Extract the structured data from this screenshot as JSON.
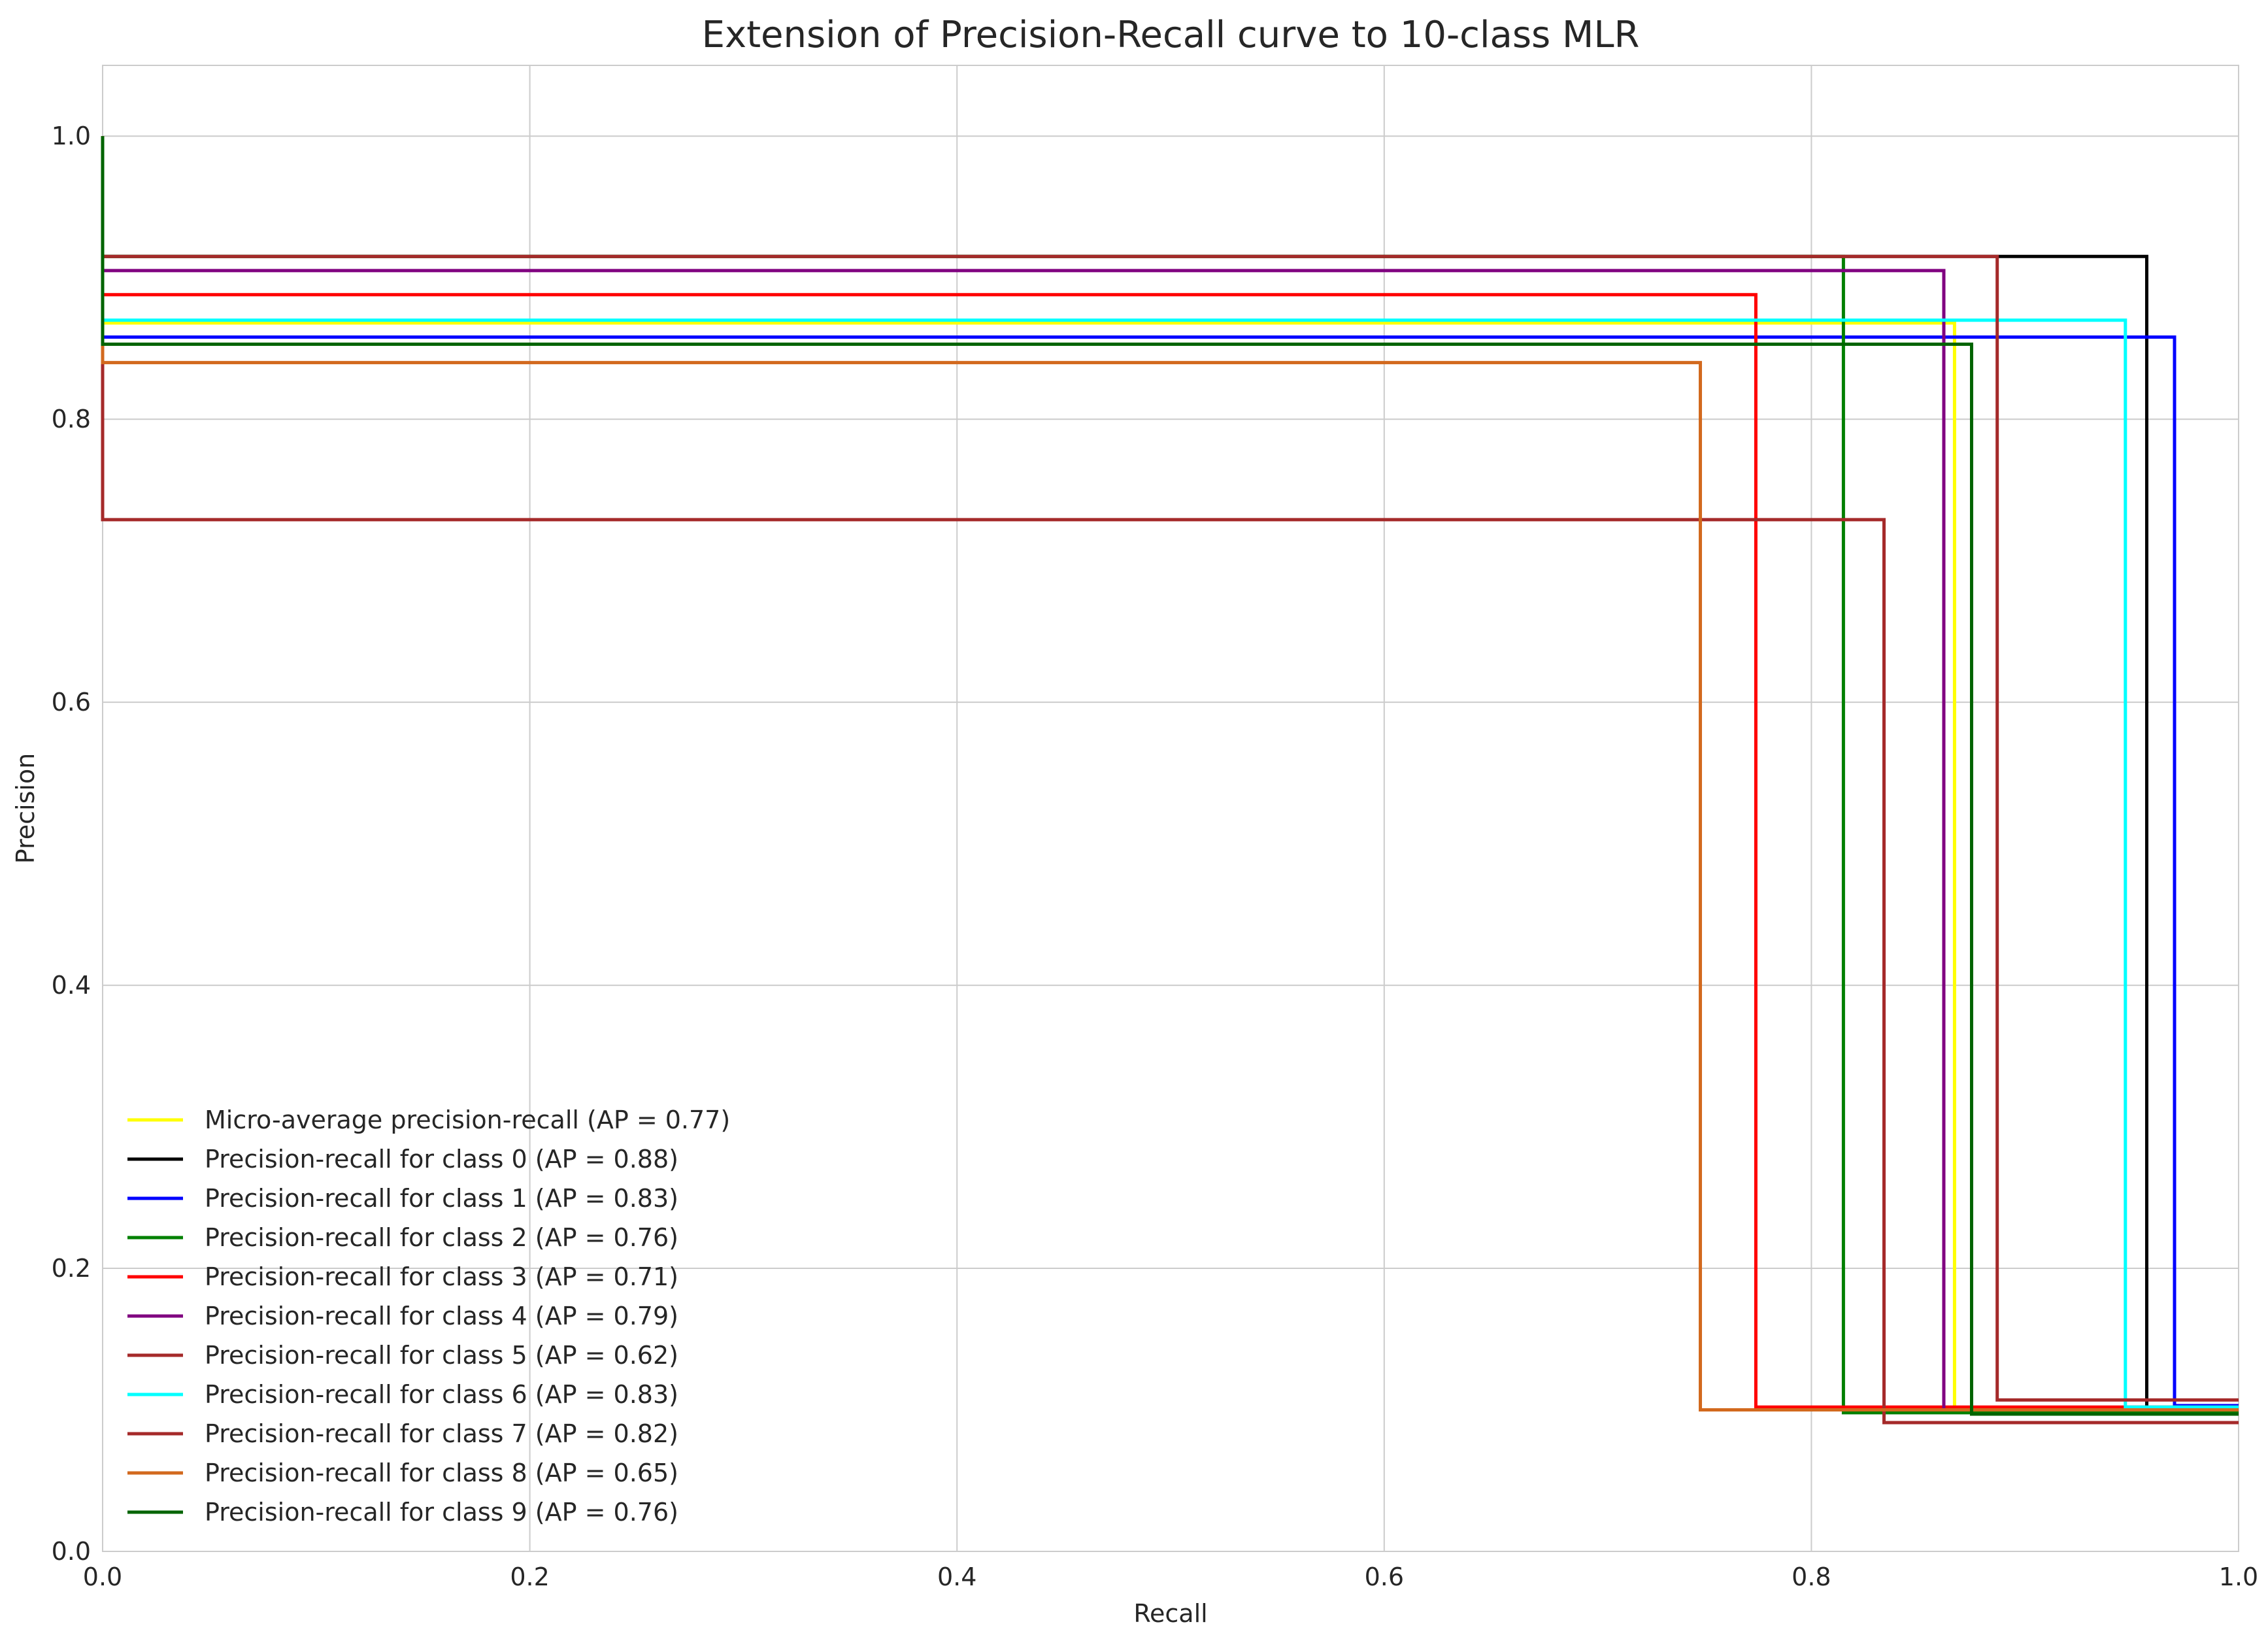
{
  "chart_data": {
    "type": "line",
    "title": "Extension of Precision-Recall curve to 10-class MLR",
    "xlabel": "Recall",
    "ylabel": "Precision",
    "xlim": [
      0.0,
      1.0
    ],
    "ylim": [
      0.0,
      1.05
    ],
    "xticks": [
      "0.0",
      "0.2",
      "0.4",
      "0.6",
      "0.8",
      "1.0"
    ],
    "yticks": [
      "0.0",
      "0.2",
      "0.4",
      "0.6",
      "0.8",
      "1.0"
    ],
    "grid": true,
    "legend_position": "lower-left",
    "series": [
      {
        "name": "Micro-average precision-recall (AP = 0.77)",
        "color": "#ffff00",
        "points": [
          [
            0.0,
            1.0
          ],
          [
            0.0,
            0.868
          ],
          [
            0.867,
            0.868
          ],
          [
            0.867,
            0.1
          ],
          [
            1.0,
            0.1
          ]
        ]
      },
      {
        "name": "Precision-recall for class 0 (AP = 0.88)",
        "color": "#000000",
        "points": [
          [
            0.0,
            1.0
          ],
          [
            0.0,
            0.915
          ],
          [
            0.957,
            0.915
          ],
          [
            0.957,
            0.1
          ],
          [
            1.0,
            0.1
          ]
        ]
      },
      {
        "name": "Precision-recall for class 1 (AP = 0.83)",
        "color": "#0000ff",
        "points": [
          [
            0.0,
            1.0
          ],
          [
            0.0,
            0.858
          ],
          [
            0.97,
            0.858
          ],
          [
            0.97,
            0.103
          ],
          [
            1.0,
            0.103
          ]
        ]
      },
      {
        "name": "Precision-recall for class 2 (AP = 0.76)",
        "color": "#008000",
        "points": [
          [
            0.0,
            1.0
          ],
          [
            0.0,
            0.915
          ],
          [
            0.815,
            0.915
          ],
          [
            0.815,
            0.098
          ],
          [
            1.0,
            0.098
          ]
        ]
      },
      {
        "name": "Precision-recall for class 3 (AP = 0.71)",
        "color": "#ff0000",
        "points": [
          [
            0.0,
            1.0
          ],
          [
            0.0,
            0.888
          ],
          [
            0.774,
            0.888
          ],
          [
            0.774,
            0.102
          ],
          [
            1.0,
            0.102
          ]
        ]
      },
      {
        "name": "Precision-recall for class 4 (AP = 0.79)",
        "color": "#800080",
        "points": [
          [
            0.0,
            1.0
          ],
          [
            0.0,
            0.905
          ],
          [
            0.862,
            0.905
          ],
          [
            0.862,
            0.1
          ],
          [
            1.0,
            0.1
          ]
        ]
      },
      {
        "name": "Precision-recall for class 5 (AP = 0.62)",
        "color": "#a52a2a",
        "points": [
          [
            0.0,
            1.0
          ],
          [
            0.0,
            0.729
          ],
          [
            0.834,
            0.729
          ],
          [
            0.834,
            0.091
          ],
          [
            1.0,
            0.091
          ]
        ]
      },
      {
        "name": "Precision-recall for class 6 (AP = 0.83)",
        "color": "#00ffff",
        "points": [
          [
            0.0,
            1.0
          ],
          [
            0.0,
            0.87
          ],
          [
            0.947,
            0.87
          ],
          [
            0.947,
            0.102
          ],
          [
            1.0,
            0.102
          ]
        ]
      },
      {
        "name": "Precision-recall for class 7 (AP = 0.82)",
        "color": "#a52a2a",
        "points": [
          [
            0.0,
            1.0
          ],
          [
            0.0,
            0.915
          ],
          [
            0.887,
            0.915
          ],
          [
            0.887,
            0.107
          ],
          [
            1.0,
            0.107
          ]
        ]
      },
      {
        "name": "Precision-recall for class 8 (AP = 0.65)",
        "color": "#d2691e",
        "points": [
          [
            0.0,
            1.0
          ],
          [
            0.0,
            0.84
          ],
          [
            0.748,
            0.84
          ],
          [
            0.748,
            0.1
          ],
          [
            1.0,
            0.1
          ]
        ]
      },
      {
        "name": "Precision-recall for class 9 (AP = 0.76)",
        "color": "#006400",
        "points": [
          [
            0.0,
            1.0
          ],
          [
            0.0,
            0.853
          ],
          [
            0.875,
            0.853
          ],
          [
            0.875,
            0.097
          ],
          [
            1.0,
            0.097
          ]
        ]
      }
    ]
  }
}
